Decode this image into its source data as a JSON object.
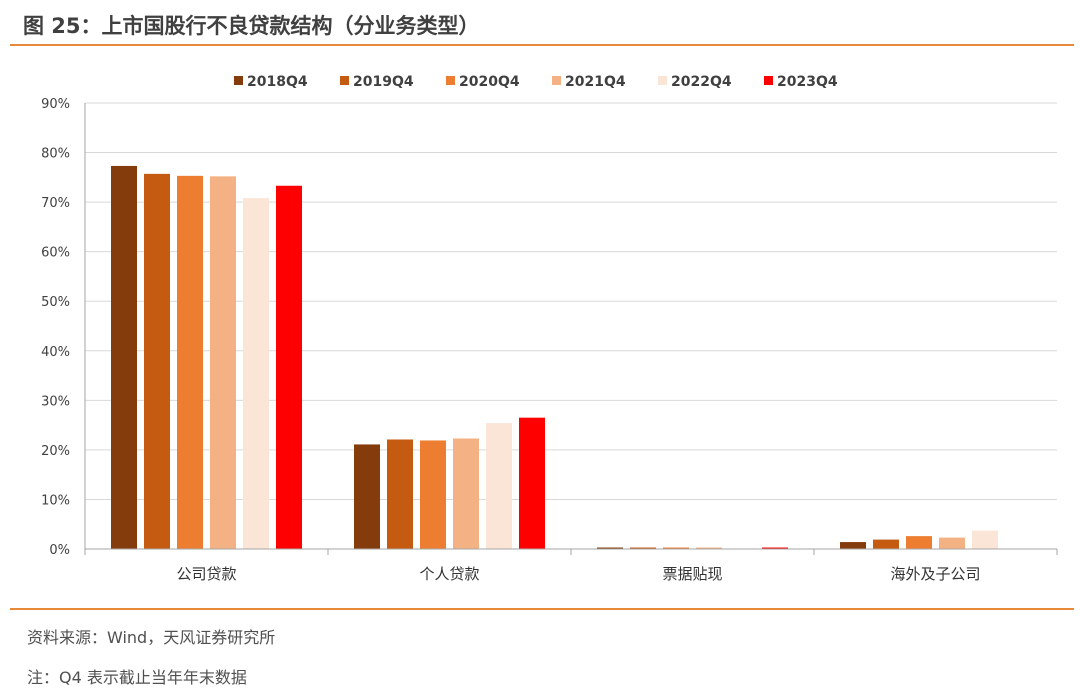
{
  "figure": {
    "title": "图 25：上市国股行不良贷款结构（分业务类型）",
    "source": "资料来源：Wind，天风证券研究所",
    "note": "注：Q4 表示截止当年年末数据"
  },
  "chart_data": {
    "type": "bar",
    "title": "",
    "xlabel": "",
    "ylabel": "",
    "categories": [
      "公司贷款",
      "个人贷款",
      "票据贴现",
      "海外及子公司"
    ],
    "ylim": [
      0,
      90
    ],
    "yticks": [
      0,
      10,
      20,
      30,
      40,
      50,
      60,
      70,
      80,
      90
    ],
    "ytick_labels": [
      "0%",
      "10%",
      "20%",
      "30%",
      "40%",
      "50%",
      "60%",
      "70%",
      "80%",
      "90%"
    ],
    "grid": true,
    "legend_position": "top-center",
    "series": [
      {
        "name": "2018Q4",
        "color": "#843c0c",
        "values": [
          77.3,
          21.1,
          0.3,
          1.4
        ]
      },
      {
        "name": "2019Q4",
        "color": "#c55a11",
        "values": [
          75.7,
          22.1,
          0.3,
          1.9
        ]
      },
      {
        "name": "2020Q4",
        "color": "#ed7d31",
        "values": [
          75.3,
          21.9,
          0.3,
          2.6
        ]
      },
      {
        "name": "2021Q4",
        "color": "#f4b183",
        "values": [
          75.2,
          22.3,
          0.3,
          2.3
        ]
      },
      {
        "name": "2022Q4",
        "color": "#fbe5d6",
        "values": [
          70.8,
          25.4,
          0.1,
          3.7
        ]
      },
      {
        "name": "2023Q4",
        "color": "#ff0000",
        "values": [
          73.3,
          26.5,
          0.3,
          0.0
        ]
      }
    ]
  }
}
